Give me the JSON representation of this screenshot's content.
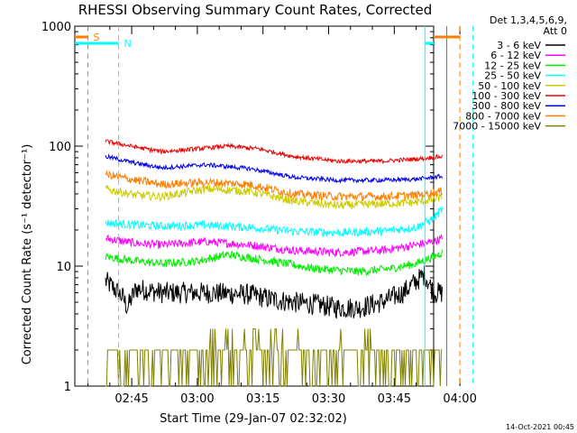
{
  "chart_data": {
    "type": "line",
    "title": "RHESSI Observing Summary Count Rates, Corrected",
    "xlabel": "Start Time (29-Jan-07 02:32:02)",
    "ylabel": "Corrected Count Rate (s⁻¹ detector⁻¹)",
    "y_scale": "log",
    "ylim": [
      1,
      1000
    ],
    "xlim_minutes": [
      0,
      82
    ],
    "x_ticks": [
      {
        "label": "02:45",
        "minute": 13
      },
      {
        "label": "03:00",
        "minute": 28
      },
      {
        "label": "03:15",
        "minute": 43
      },
      {
        "label": "03:30",
        "minute": 58
      },
      {
        "label": "03:45",
        "minute": 73
      },
      {
        "label": "04:00",
        "minute": 88
      }
    ],
    "y_ticks": [
      {
        "label": "1",
        "value": 1
      },
      {
        "label": "10",
        "value": 10
      },
      {
        "label": "100",
        "value": 100
      },
      {
        "label": "1000",
        "value": 1000
      }
    ],
    "legend_header": [
      "Det 1,3,4,5,6,9,",
      "Att 0"
    ],
    "data_start_minute": 7,
    "data_end_minute": 84,
    "series": [
      {
        "name": "3 - 6 keV",
        "color": "#000000",
        "anchors": [
          [
            7,
            7.5
          ],
          [
            9,
            6.5
          ],
          [
            11,
            5.5
          ],
          [
            12,
            4.5
          ],
          [
            14,
            6.5
          ],
          [
            20,
            6.0
          ],
          [
            30,
            6.0
          ],
          [
            40,
            5.8
          ],
          [
            45,
            5.3
          ],
          [
            50,
            5.0
          ],
          [
            55,
            4.8
          ],
          [
            60,
            4.5
          ],
          [
            65,
            4.5
          ],
          [
            70,
            5.0
          ],
          [
            75,
            6.0
          ],
          [
            78,
            7.5
          ],
          [
            80,
            8.5
          ],
          [
            82,
            6.0
          ],
          [
            84,
            6.0
          ]
        ]
      },
      {
        "name": "6 - 12 keV",
        "color": "#ff00ff",
        "anchors": [
          [
            7,
            17
          ],
          [
            14,
            15.5
          ],
          [
            20,
            15
          ],
          [
            30,
            16
          ],
          [
            40,
            15
          ],
          [
            50,
            13.5
          ],
          [
            60,
            13
          ],
          [
            70,
            13.5
          ],
          [
            78,
            15
          ],
          [
            82,
            16
          ],
          [
            84,
            17
          ]
        ]
      },
      {
        "name": "12 - 25 keV",
        "color": "#00ee00",
        "anchors": [
          [
            7,
            12
          ],
          [
            14,
            11
          ],
          [
            20,
            10.5
          ],
          [
            28,
            11
          ],
          [
            35,
            12.5
          ],
          [
            45,
            11
          ],
          [
            55,
            9.5
          ],
          [
            65,
            9
          ],
          [
            72,
            9.5
          ],
          [
            78,
            10.5
          ],
          [
            82,
            12
          ],
          [
            84,
            13
          ]
        ]
      },
      {
        "name": "25 - 50 keV",
        "color": "#00ffff",
        "anchors": [
          [
            7,
            23
          ],
          [
            14,
            22
          ],
          [
            20,
            21.5
          ],
          [
            30,
            22
          ],
          [
            40,
            21
          ],
          [
            50,
            19.5
          ],
          [
            60,
            19
          ],
          [
            70,
            19.5
          ],
          [
            78,
            21
          ],
          [
            82,
            25
          ],
          [
            84,
            30
          ]
        ]
      },
      {
        "name": "50 - 100 keV",
        "color": "#cccc00",
        "anchors": [
          [
            7,
            44
          ],
          [
            14,
            39
          ],
          [
            20,
            38
          ],
          [
            30,
            44
          ],
          [
            40,
            42
          ],
          [
            50,
            35
          ],
          [
            60,
            32
          ],
          [
            70,
            33
          ],
          [
            78,
            34
          ],
          [
            82,
            36
          ],
          [
            84,
            38
          ]
        ]
      },
      {
        "name": "100 - 300 keV",
        "color": "#ee0000",
        "anchors": [
          [
            7,
            110
          ],
          [
            14,
            98
          ],
          [
            20,
            90
          ],
          [
            28,
            95
          ],
          [
            35,
            100
          ],
          [
            42,
            95
          ],
          [
            50,
            82
          ],
          [
            60,
            75
          ],
          [
            70,
            75
          ],
          [
            78,
            78
          ],
          [
            84,
            82
          ]
        ]
      },
      {
        "name": "300 - 800 keV",
        "color": "#0000ee",
        "anchors": [
          [
            7,
            82
          ],
          [
            14,
            72
          ],
          [
            20,
            66
          ],
          [
            30,
            70
          ],
          [
            40,
            65
          ],
          [
            50,
            55
          ],
          [
            60,
            52
          ],
          [
            70,
            52
          ],
          [
            78,
            53
          ],
          [
            84,
            56
          ]
        ]
      },
      {
        "name": "800 - 7000 keV",
        "color": "#ff7f00",
        "anchors": [
          [
            7,
            58
          ],
          [
            14,
            52
          ],
          [
            20,
            48
          ],
          [
            30,
            50
          ],
          [
            40,
            48
          ],
          [
            50,
            40
          ],
          [
            60,
            38
          ],
          [
            70,
            38
          ],
          [
            78,
            39
          ],
          [
            84,
            42
          ]
        ]
      },
      {
        "name": "7000 - 15000 keV",
        "color": "#808000",
        "anchors": [
          [
            7,
            2
          ],
          [
            84,
            2
          ]
        ]
      }
    ],
    "markers": [
      {
        "label": "S",
        "color": "#ff7f00",
        "minute": 3
      },
      {
        "label": "N",
        "color": "#00ffff",
        "minute": 10
      }
    ],
    "other_markers": [
      {
        "color": "#00ffff",
        "minute": 80
      },
      {
        "color": "#808000",
        "minute": 85
      },
      {
        "color": "#ff7f00",
        "minute": 88
      },
      {
        "color": "#00ffff",
        "minute": 91
      }
    ]
  },
  "footer_timestamp": "14-Oct-2021 00:45"
}
